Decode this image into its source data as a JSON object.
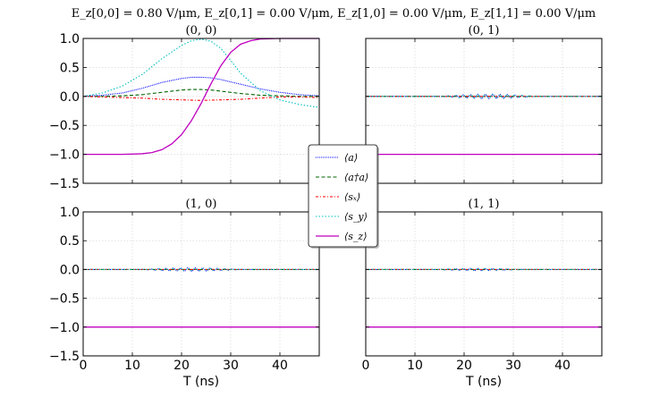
{
  "figure": {
    "suptitle": "E_z[0,0] = 0.80 V/μm,  E_z[0,1] = 0.00 V/μm,  E_z[1,0] = 0.00 V/μm,  E_z[1,1] = 0.00 V/μm"
  },
  "chart_data": {
    "type": "line",
    "xlabel": "T (ns)",
    "xlim": [
      0,
      48
    ],
    "ylim": [
      -1.5,
      1.0
    ],
    "xticks": [
      "0",
      "10",
      "20",
      "30",
      "40"
    ],
    "yticks": [
      "1.0",
      "0.5",
      "0.0",
      "−0.5",
      "−1.0",
      "−1.5"
    ],
    "grid": true,
    "legend": {
      "placement": "center",
      "entries": [
        {
          "label": "⟨a⟩",
          "color": "#0000ff",
          "style": "dotted-fine"
        },
        {
          "label": "⟨a†a⟩",
          "color": "#006400",
          "style": "dashed"
        },
        {
          "label": "⟨sₓ⟩",
          "color": "#ff0000",
          "style": "dashdot"
        },
        {
          "label": "⟨s_y⟩",
          "color": "#00bfbf",
          "style": "dotted"
        },
        {
          "label": "⟨s_z⟩",
          "color": "#bf00bf",
          "style": "solid"
        }
      ]
    },
    "panels": [
      {
        "title": "(0, 0)",
        "series": [
          {
            "name": "⟨a⟩",
            "x": [
              0,
              4,
              8,
              12,
              16,
              20,
              22,
              24,
              26,
              28,
              32,
              36,
              40,
              44,
              48
            ],
            "y": [
              0.0,
              0.02,
              0.06,
              0.14,
              0.24,
              0.31,
              0.33,
              0.33,
              0.32,
              0.29,
              0.21,
              0.13,
              0.07,
              0.03,
              0.01
            ]
          },
          {
            "name": "⟨a†a⟩",
            "x": [
              0,
              4,
              8,
              12,
              16,
              20,
              22,
              24,
              26,
              28,
              32,
              36,
              40,
              44,
              48
            ],
            "y": [
              0.0,
              0.0,
              0.01,
              0.03,
              0.07,
              0.11,
              0.12,
              0.12,
              0.11,
              0.09,
              0.05,
              0.02,
              0.01,
              0.0,
              0.0
            ]
          },
          {
            "name": "⟨sₓ⟩",
            "x": [
              0,
              4,
              8,
              12,
              16,
              20,
              24,
              28,
              32,
              36,
              40,
              44,
              48
            ],
            "y": [
              0.0,
              -0.01,
              -0.02,
              -0.03,
              -0.05,
              -0.06,
              -0.07,
              -0.06,
              -0.05,
              -0.03,
              -0.01,
              -0.01,
              -0.02
            ]
          },
          {
            "name": "⟨s_y⟩",
            "x": [
              0,
              4,
              8,
              12,
              16,
              20,
              22,
              24,
              26,
              28,
              30,
              32,
              36,
              40,
              44,
              48
            ],
            "y": [
              0.0,
              0.06,
              0.18,
              0.38,
              0.65,
              0.88,
              0.96,
              0.99,
              0.95,
              0.83,
              0.62,
              0.4,
              0.1,
              -0.06,
              -0.14,
              -0.19
            ]
          },
          {
            "name": "⟨s_z⟩",
            "x": [
              0,
              8,
              12,
              14,
              16,
              18,
              20,
              22,
              24,
              26,
              28,
              30,
              32,
              34,
              36,
              40,
              44,
              48
            ],
            "y": [
              -1.0,
              -1.0,
              -0.99,
              -0.97,
              -0.92,
              -0.82,
              -0.66,
              -0.42,
              -0.12,
              0.22,
              0.53,
              0.76,
              0.9,
              0.96,
              0.99,
              1.0,
              1.0,
              1.0
            ]
          }
        ]
      },
      {
        "title": "(0, 1)",
        "series": [
          {
            "name": "⟨a⟩",
            "x": [
              0,
              48
            ],
            "y": [
              0.0,
              0.0
            ],
            "ripple": [
              15,
              35,
              0.04
            ]
          },
          {
            "name": "⟨a†a⟩",
            "x": [
              0,
              48
            ],
            "y": [
              0.0,
              0.0
            ]
          },
          {
            "name": "⟨sₓ⟩",
            "x": [
              0,
              48
            ],
            "y": [
              0.0,
              0.0
            ]
          },
          {
            "name": "⟨s_y⟩",
            "x": [
              0,
              48
            ],
            "y": [
              0.0,
              0.0
            ],
            "ripple": [
              15,
              35,
              0.03
            ]
          },
          {
            "name": "⟨s_z⟩",
            "x": [
              0,
              48
            ],
            "y": [
              -1.0,
              -1.0
            ]
          }
        ]
      },
      {
        "title": "(1, 0)",
        "series": [
          {
            "name": "⟨a⟩",
            "x": [
              0,
              48
            ],
            "y": [
              0.0,
              0.0
            ],
            "ripple": [
              12,
              32,
              0.03
            ]
          },
          {
            "name": "⟨a†a⟩",
            "x": [
              0,
              48
            ],
            "y": [
              0.0,
              0.0
            ]
          },
          {
            "name": "⟨sₓ⟩",
            "x": [
              0,
              48
            ],
            "y": [
              0.0,
              0.0
            ]
          },
          {
            "name": "⟨s_y⟩",
            "x": [
              0,
              48
            ],
            "y": [
              0.0,
              0.0
            ],
            "ripple": [
              12,
              32,
              0.02
            ]
          },
          {
            "name": "⟨s_z⟩",
            "x": [
              0,
              48
            ],
            "y": [
              -1.0,
              -1.0
            ]
          }
        ]
      },
      {
        "title": "(1, 1)",
        "series": [
          {
            "name": "⟨a⟩",
            "x": [
              0,
              48
            ],
            "y": [
              0.0,
              0.0
            ],
            "ripple": [
              14,
              32,
              0.02
            ]
          },
          {
            "name": "⟨a†a⟩",
            "x": [
              0,
              48
            ],
            "y": [
              0.0,
              0.0
            ]
          },
          {
            "name": "⟨sₓ⟩",
            "x": [
              0,
              48
            ],
            "y": [
              0.0,
              0.0
            ]
          },
          {
            "name": "⟨s_y⟩",
            "x": [
              0,
              48
            ],
            "y": [
              0.0,
              0.0
            ],
            "ripple": [
              14,
              32,
              0.015
            ]
          },
          {
            "name": "⟨s_z⟩",
            "x": [
              0,
              48
            ],
            "y": [
              -1.0,
              -1.0
            ]
          }
        ]
      }
    ]
  }
}
